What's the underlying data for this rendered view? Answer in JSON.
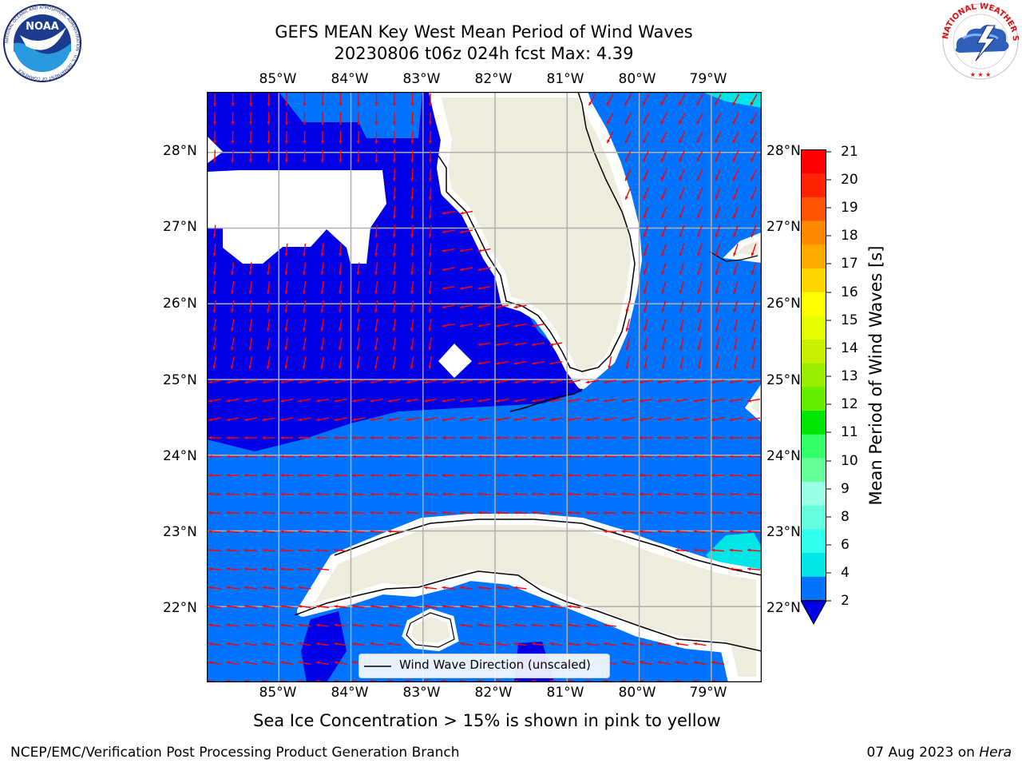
{
  "header": {
    "title_line1": "GEFS MEAN Key West Mean Period of Wind Waves",
    "title_line2": "20230806 t06z 024h fcst   Max: 4.39"
  },
  "logos": {
    "left_text": "NOAA",
    "left_ring": "NATIONAL OCEANIC AND ATMOSPHERIC ADMINISTRATION · U.S. DEPARTMENT OF COMMERCE",
    "right_ring": "NATIONAL WEATHER SERVICE"
  },
  "map": {
    "lon_labels": [
      "85°W",
      "84°W",
      "83°W",
      "82°W",
      "81°W",
      "80°W",
      "79°W"
    ],
    "lat_labels": [
      "28°N",
      "27°N",
      "26°N",
      "25°N",
      "24°N",
      "23°N",
      "22°N"
    ],
    "lon_values": [
      -85,
      -84,
      -83,
      -82,
      -81,
      -80,
      -79
    ],
    "lat_values": [
      28,
      27,
      26,
      25,
      24,
      23,
      22
    ],
    "lon_range": [
      -86.0,
      -78.3
    ],
    "lat_range": [
      21.0,
      28.8
    ],
    "land_color": "#eeecdc",
    "vector_color": "#ff0000"
  },
  "legend": {
    "label": "Wind Wave Direction (unscaled)"
  },
  "colorbar": {
    "label": "Mean Period of Wind Waves [s]",
    "ticks": [
      "21",
      "20",
      "19",
      "18",
      "17",
      "16",
      "15",
      "14",
      "13",
      "12",
      "11",
      "10",
      "9",
      "8",
      "6",
      "4",
      "2"
    ],
    "levels": [
      2,
      4,
      6,
      7,
      8,
      9,
      10,
      11,
      12,
      13,
      14,
      15,
      16,
      17,
      18,
      19,
      20,
      21
    ],
    "colors": [
      "#0073ff",
      "#00e6e6",
      "#33ffee",
      "#66ffdd",
      "#99ffe6",
      "#66ff99",
      "#33ff66",
      "#00e600",
      "#66ee00",
      "#99ee00",
      "#c8f000",
      "#e6ff00",
      "#ffff00",
      "#ffd500",
      "#ffaa00",
      "#ff8800",
      "#ff5500",
      "#ff2200",
      "#ff0000"
    ],
    "extend_min_color": "#0000e6"
  },
  "fill_colors": {
    "deep": "#0000e6",
    "mid": "#0073ff",
    "high": "#00e6e6"
  },
  "footer": {
    "note": "Sea Ice Concentration > 15% is shown in pink to yellow",
    "credit": "NCEP/EMC/Verification Post Processing Product Generation Branch",
    "date": "07 Aug 2023 on",
    "host": "Hera"
  }
}
